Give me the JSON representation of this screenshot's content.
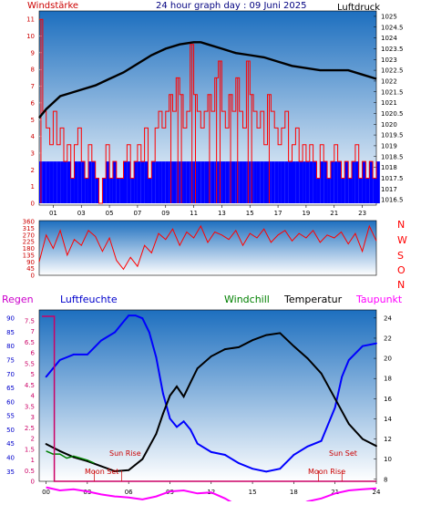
{
  "header": {
    "left_label": "Windstärke",
    "title": "24 hour graph day : 09 Juni 2025",
    "right_label": "Luftdruck"
  },
  "compass": {
    "letters": [
      "N",
      "W",
      "S",
      "O",
      "N"
    ]
  },
  "bottom_header": {
    "regen": "Regen",
    "luftfeuchte": "Luftfeuchte",
    "windchill": "Windchill",
    "temperatur": "Temperatur",
    "taupunkt": "Taupunkt"
  },
  "astro": {
    "sun_rise": "Sun Rise",
    "moon_set": "Moon Set",
    "sun_set": "Sun Set",
    "moon_rise": "Moon Rise"
  },
  "colors": {
    "wind": "#ff0000",
    "wind_base": "#0000ff",
    "pressure": "#000000",
    "direction": "#ff0000",
    "humidity": "#0000ff",
    "temperature": "#000000",
    "dewpoint": "#ff00ff",
    "windchill": "#008000",
    "rain": "#cc0066",
    "bg_top": "#1d6fbf",
    "bg_bottom": "#ffffff"
  },
  "chart_data": [
    {
      "type": "line",
      "name_panel": "wind-pressure",
      "x_range": [
        0,
        24
      ],
      "x_ticks": [
        "01",
        "03",
        "05",
        "07",
        "09",
        "11",
        "13",
        "15",
        "17",
        "19",
        "21",
        "23"
      ],
      "y_left_ticks": [
        "0",
        "1",
        "2",
        "3",
        "4",
        "5",
        "6",
        "7",
        "8",
        "9",
        "10",
        "11"
      ],
      "y_left_range": [
        0,
        11.5
      ],
      "y_right_ticks": [
        "1016.5",
        "1017",
        "1017.5",
        "1018",
        "1018.5",
        "1019",
        "1019.5",
        "1020",
        "1020.5",
        "1021",
        "1021.5",
        "1022",
        "1022.5",
        "1023",
        "1023.5",
        "1024",
        "1024.5",
        "1025"
      ],
      "y_right_range": [
        1016.25,
        1025.25
      ],
      "series": [
        {
          "key": "pressure",
          "axis": "right",
          "x": [
            0,
            0.5,
            1,
            1.5,
            2,
            3,
            4,
            5,
            6,
            7,
            8,
            9,
            10,
            11,
            11.5,
            12,
            13,
            14,
            15,
            16,
            17,
            18,
            19,
            20,
            21,
            22,
            23,
            24
          ],
          "y": [
            1020.3,
            1020.7,
            1021.0,
            1021.3,
            1021.4,
            1021.6,
            1021.8,
            1022.1,
            1022.4,
            1022.8,
            1023.2,
            1023.5,
            1023.7,
            1023.8,
            1023.8,
            1023.7,
            1023.5,
            1023.3,
            1023.2,
            1023.1,
            1022.9,
            1022.7,
            1022.6,
            1022.5,
            1022.5,
            1022.5,
            1022.3,
            1022.1
          ]
        },
        {
          "key": "wind",
          "axis": "left",
          "x": [
            0,
            0.25,
            0.5,
            0.75,
            1,
            1.25,
            1.5,
            1.75,
            2,
            2.25,
            2.5,
            2.75,
            3,
            3.25,
            3.5,
            3.75,
            4,
            4.25,
            4.5,
            4.75,
            5,
            5.25,
            5.5,
            5.75,
            6,
            6.25,
            6.5,
            6.75,
            7,
            7.25,
            7.5,
            7.75,
            8,
            8.25,
            8.5,
            8.75,
            9,
            9.25,
            9.5,
            9.75,
            10,
            10.25,
            10.5,
            10.75,
            11,
            11.25,
            11.5,
            11.75,
            12,
            12.25,
            12.5,
            12.75,
            13,
            13.25,
            13.5,
            13.75,
            14,
            14.25,
            14.5,
            14.75,
            15,
            15.25,
            15.5,
            15.75,
            16,
            16.25,
            16.5,
            16.75,
            17,
            17.25,
            17.5,
            17.75,
            18,
            18.25,
            18.5,
            18.75,
            19,
            19.25,
            19.5,
            19.75,
            20,
            20.25,
            20.5,
            20.75,
            21,
            21.25,
            21.5,
            21.75,
            22,
            22.25,
            22.5,
            22.75,
            23,
            23.25,
            23.5,
            23.75,
            24
          ],
          "y": [
            11,
            5.5,
            4.5,
            3.5,
            5.5,
            3.5,
            4.5,
            2.5,
            3.5,
            1.5,
            3.5,
            4.5,
            2.5,
            1.5,
            3.5,
            2.5,
            1.5,
            0,
            1.5,
            3.5,
            1.5,
            2.5,
            1.5,
            1.5,
            2.5,
            3.5,
            1.5,
            2.5,
            3.5,
            2.5,
            4.5,
            1.5,
            2.5,
            4.5,
            5.5,
            4.5,
            5.5,
            6.5,
            5.5,
            7.5,
            6.5,
            4.5,
            5.5,
            9.5,
            6.5,
            5.5,
            4.5,
            5.5,
            6.5,
            5.5,
            7.5,
            8.5,
            5.5,
            4.5,
            6.5,
            5.5,
            7.5,
            5.5,
            4.5,
            8.5,
            6.5,
            5.5,
            4.5,
            5.5,
            3.5,
            6.5,
            5.5,
            4.5,
            3.5,
            4.5,
            5.5,
            2.5,
            3.5,
            4.5,
            2.5,
            3.5,
            2.5,
            3.5,
            2.5,
            1.5,
            3.5,
            2.5,
            1.5,
            2.5,
            3.5,
            2.5,
            1.5,
            2.5,
            1.5,
            2.5,
            3.5,
            1.5,
            2.5,
            1.5,
            2.5,
            1.5,
            2.5
          ]
        }
      ]
    },
    {
      "type": "line",
      "name_panel": "wind-direction",
      "x_range": [
        0,
        24
      ],
      "y_ticks": [
        "0",
        "45",
        "90",
        "135",
        "180",
        "225",
        "270",
        "315",
        "360"
      ],
      "y_range": [
        0,
        360
      ],
      "series": [
        {
          "key": "direction",
          "x": [
            0,
            0.5,
            1,
            1.5,
            2,
            2.5,
            3,
            3.5,
            4,
            4.5,
            5,
            5.5,
            6,
            6.5,
            7,
            7.5,
            8,
            8.5,
            9,
            9.5,
            10,
            10.5,
            11,
            11.5,
            12,
            12.5,
            13,
            13.5,
            14,
            14.5,
            15,
            15.5,
            16,
            16.5,
            17,
            17.5,
            18,
            18.5,
            19,
            19.5,
            20,
            20.5,
            21,
            21.5,
            22,
            22.5,
            23,
            23.5,
            24
          ],
          "y": [
            90,
            270,
            180,
            300,
            135,
            240,
            200,
            300,
            260,
            160,
            250,
            100,
            40,
            120,
            60,
            200,
            150,
            280,
            240,
            310,
            200,
            290,
            250,
            330,
            220,
            290,
            270,
            240,
            300,
            200,
            280,
            250,
            310,
            220,
            270,
            300,
            230,
            280,
            250,
            300,
            220,
            270,
            250,
            290,
            210,
            280,
            160,
            330,
            230
          ]
        }
      ]
    },
    {
      "type": "line",
      "name_panel": "temp-humidity",
      "x_range": [
        -0.5,
        24
      ],
      "x_ticks": [
        "00",
        "03",
        "06",
        "09",
        "12",
        "15",
        "18",
        "21",
        "24"
      ],
      "y_humidity_ticks": [
        "35",
        "40",
        "45",
        "50",
        "55",
        "60",
        "65",
        "70",
        "75",
        "80",
        "85",
        "90"
      ],
      "y_humidity_range": [
        31.5,
        93
      ],
      "y_regen_ticks": [
        "0",
        "0.5",
        "1",
        "1.5",
        "2",
        "2.5",
        "3",
        "3.5",
        "4",
        "4.5",
        "5",
        "5.5",
        "6",
        "6.5",
        "7",
        "7.5"
      ],
      "y_regen_range": [
        0,
        8.0
      ],
      "y_temp_ticks": [
        "8",
        "10",
        "12",
        "14",
        "16",
        "18",
        "20",
        "22",
        "24"
      ],
      "y_temp_range": [
        7.8,
        24.8
      ],
      "series": [
        {
          "key": "humidity",
          "axis": "humidity",
          "x": [
            0,
            0.5,
            1,
            1.5,
            2,
            3,
            4,
            5,
            5.5,
            6,
            6.5,
            7,
            7.5,
            8,
            8.5,
            9,
            9.5,
            10,
            10.5,
            11,
            12,
            13,
            14,
            15,
            16,
            17,
            18,
            19,
            20,
            21,
            21.5,
            22,
            23,
            24
          ],
          "y": [
            69,
            72,
            75,
            76,
            77,
            77,
            82,
            85,
            88,
            91,
            91,
            90,
            85,
            76,
            63,
            54,
            51,
            53,
            50,
            45,
            42,
            41,
            38,
            36,
            35,
            36,
            41,
            44,
            46,
            58,
            69,
            75,
            80,
            81
          ]
        },
        {
          "key": "temperature",
          "axis": "temp",
          "x": [
            0,
            1,
            2,
            3,
            4,
            5,
            6,
            7,
            8,
            8.5,
            9,
            9.5,
            10,
            10.5,
            11,
            12,
            13,
            14,
            15,
            16,
            17,
            18,
            19,
            20,
            21,
            22,
            23,
            24
          ],
          "y": [
            11.5,
            10.8,
            10.2,
            9.8,
            9.3,
            8.8,
            8.9,
            10.0,
            12.5,
            14.5,
            16.3,
            17.2,
            16.2,
            17.6,
            19.0,
            20.2,
            20.9,
            21.1,
            21.8,
            22.3,
            22.5,
            21.2,
            20.0,
            18.5,
            16.0,
            13.5,
            12.0,
            11.3
          ]
        },
        {
          "key": "dewpoint",
          "axis": "temp",
          "x": [
            0,
            1,
            2,
            3,
            4,
            5,
            6,
            7,
            8,
            9,
            10,
            11,
            12,
            13,
            14,
            15,
            16,
            17,
            18,
            19,
            20,
            21,
            22,
            23,
            24
          ],
          "y": [
            7.2,
            6.9,
            7.0,
            6.8,
            6.5,
            6.3,
            6.2,
            6.0,
            6.3,
            6.8,
            6.9,
            6.6,
            6.7,
            6.1,
            5.3,
            4.8,
            4.6,
            4.8,
            5.2,
            5.8,
            6.1,
            6.6,
            6.9,
            7.0,
            7.1
          ]
        },
        {
          "key": "windchill",
          "axis": "temp",
          "x": [
            0,
            0.5,
            1,
            1.5,
            2,
            2.5,
            3,
            3.5
          ],
          "y": [
            10.8,
            10.5,
            10.5,
            10.1,
            10.3,
            10.1,
            9.9,
            9.6
          ]
        },
        {
          "key": "rain",
          "axis": "regen",
          "x": [
            -0.3,
            0.6,
            0.6,
            24
          ],
          "y": [
            7.7,
            7.7,
            0.0,
            0.0
          ]
        }
      ],
      "astro_times": {
        "sun_rise": 5.5,
        "moon_set": 3.5,
        "sun_set": 21.5,
        "moon_rise": 19.8
      }
    }
  ]
}
